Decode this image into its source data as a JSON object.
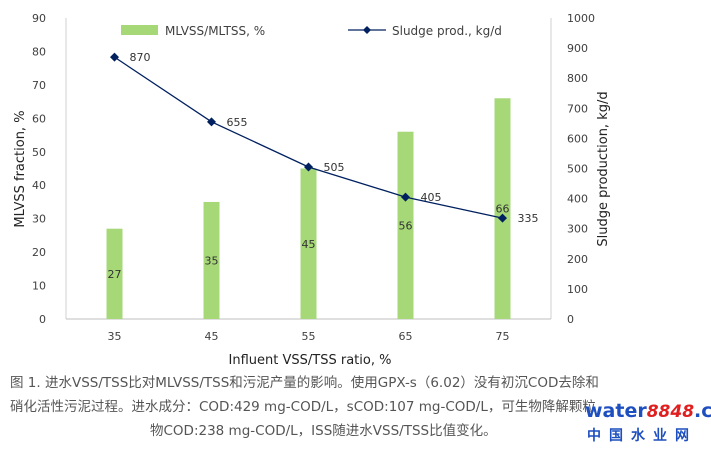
{
  "chart_data": {
    "type": "bar+line",
    "categories": [
      "35",
      "45",
      "55",
      "65",
      "75"
    ],
    "series": [
      {
        "name": "MLVSS/MLTSS, %",
        "kind": "bar",
        "axis": "left",
        "color": "#a6d877",
        "values": [
          27,
          35,
          45,
          56,
          66
        ],
        "labels": [
          "27",
          "35",
          "45",
          "56",
          "66"
        ]
      },
      {
        "name": "Sludge prod., kg/d",
        "kind": "line",
        "axis": "right",
        "color": "#002060",
        "marker": "diamond",
        "values": [
          870,
          655,
          505,
          405,
          335
        ],
        "labels": [
          "870",
          "655",
          "505",
          "405",
          "335"
        ]
      }
    ],
    "xlabel": "Influent VSS/TSS ratio, %",
    "ylabel_left": "MLVSS fraction, %",
    "ylabel_right": "Sludge production, kg/d",
    "ylim_left": [
      0,
      90
    ],
    "ylim_right": [
      0,
      1000
    ],
    "yticks_left": [
      "0",
      "10",
      "20",
      "30",
      "40",
      "50",
      "60",
      "70",
      "80",
      "90"
    ],
    "yticks_right": [
      "0",
      "100",
      "200",
      "300",
      "400",
      "500",
      "600",
      "700",
      "800",
      "900",
      "1000"
    ],
    "legend_position": "top"
  },
  "caption": {
    "line1": "图 1. 进水VSS/TSS比对MLVSS/TSS和污泥产量的影响。使用GPX-s（6.02）没有初沉COD去除和",
    "line2": "硝化活性污泥过程。进水成分：COD:429 mg-COD/L，sCOD:107 mg-COD/L，可生物降解颗粒",
    "line3": "物COD:238 mg-COD/L，ISS随进水VSS/TSS比值变化。"
  },
  "watermark": {
    "brand_prefix": "water",
    "brand_number": "8848",
    "brand_suffix": ".com",
    "subtitle": "中国水业网"
  }
}
